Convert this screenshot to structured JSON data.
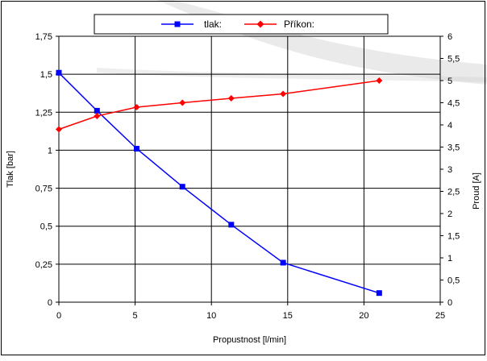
{
  "chart_data": {
    "type": "line",
    "xlabel": "Propustnost [l/min]",
    "ylabel_left": "Tlak [bar]",
    "ylabel_right": "Proud [A]",
    "x_ticks": [
      "0",
      "5",
      "10",
      "15",
      "20",
      "25"
    ],
    "y_left_ticks": [
      "0",
      "0,25",
      "0,5",
      "0,75",
      "1",
      "1,25",
      "1,5",
      "1,75"
    ],
    "y_right_ticks": [
      "0",
      "0,5",
      "1",
      "1,5",
      "2",
      "2,5",
      "3",
      "3,5",
      "4",
      "4,5",
      "5",
      "5,5",
      "6"
    ],
    "xlim": [
      0,
      25
    ],
    "ylim_left": [
      0,
      1.75
    ],
    "ylim_right": [
      0,
      6
    ],
    "grid": true,
    "legend_position": "top",
    "series": [
      {
        "name": "tlak:",
        "axis": "left",
        "color": "#0000ff",
        "marker": "square",
        "x": [
          0,
          2.5,
          5.1,
          8.1,
          11.3,
          14.7,
          21.0
        ],
        "y": [
          1.51,
          1.26,
          1.01,
          0.76,
          0.51,
          0.26,
          0.06
        ]
      },
      {
        "name": "Příkon:",
        "axis": "right",
        "color": "#ff0000",
        "marker": "diamond",
        "x": [
          0,
          2.5,
          5.1,
          8.1,
          11.3,
          14.7,
          21.0
        ],
        "y": [
          3.9,
          4.2,
          4.4,
          4.5,
          4.6,
          4.7,
          5.0
        ]
      }
    ]
  }
}
